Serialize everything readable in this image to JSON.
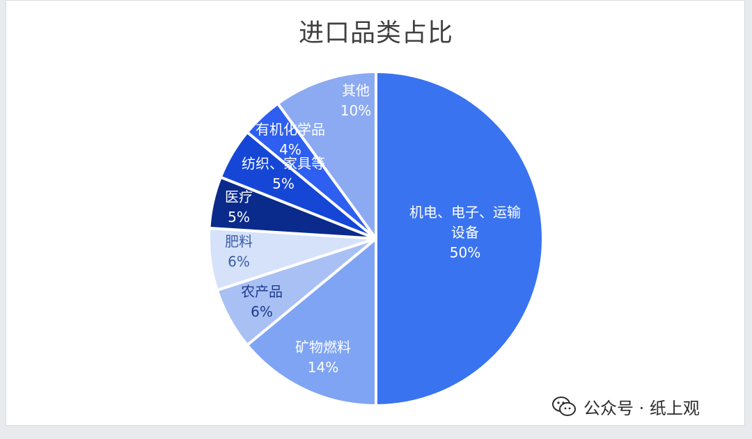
{
  "chart_data": {
    "type": "pie",
    "title": "进口品类占比",
    "start": "12 o'clock",
    "direction": "clockwise",
    "slices": [
      {
        "label": "机电、电子、运输\n设备",
        "value": 50,
        "value_text": "50%",
        "color": "#3a73f0",
        "text_color": "#ffffff"
      },
      {
        "label": "矿物燃料",
        "value": 14,
        "value_text": "14%",
        "color": "#7fa4f4",
        "text_color": "#ffffff"
      },
      {
        "label": "农产品",
        "value": 6,
        "value_text": "6%",
        "color": "#a9c0f5",
        "text_color": "#1b3a8a"
      },
      {
        "label": "肥料",
        "value": 6,
        "value_text": "6%",
        "color": "#d6e2fa",
        "text_color": "#3a5da8"
      },
      {
        "label": "医疗",
        "value": 5,
        "value_text": "5%",
        "color": "#0a2a8c",
        "text_color": "#ffffff"
      },
      {
        "label": "纺织、家具等",
        "value": 5,
        "value_text": "5%",
        "color": "#1546d6",
        "text_color": "#ffffff"
      },
      {
        "label": "有机化学品",
        "value": 4,
        "value_text": "4%",
        "color": "#2e5ff0",
        "text_color": "#ffffff"
      },
      {
        "label": "其他",
        "value": 10,
        "value_text": "10%",
        "color": "#8caaf2",
        "text_color": "#ffffff"
      }
    ]
  },
  "watermark": {
    "text": "公众号 · 纸上观",
    "icon": "wechat-icon"
  }
}
